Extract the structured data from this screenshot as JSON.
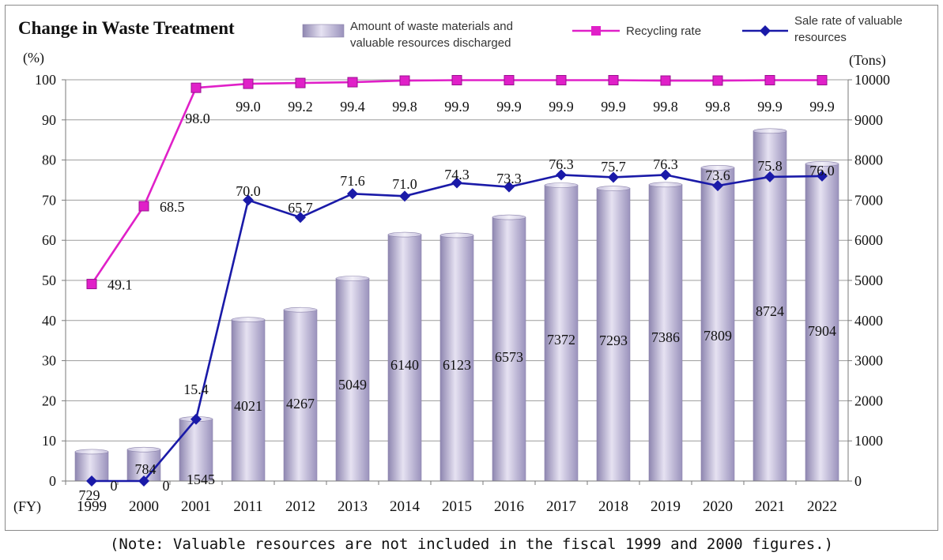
{
  "note": "(Note: Valuable resources are not included in the fiscal 1999 and 2000 figures.)",
  "chart_data": {
    "type": "bar",
    "title": "Change in Waste Treatment",
    "x_axis_unit": "(FY)",
    "left_axis_unit": "(%)",
    "right_axis_unit": "(Tons)",
    "left_ylim": [
      0,
      100
    ],
    "left_ticks": [
      "0",
      "10",
      "20",
      "30",
      "40",
      "50",
      "60",
      "70",
      "80",
      "90",
      "100"
    ],
    "right_ylim": [
      0,
      10000
    ],
    "right_ticks": [
      "0",
      "1000",
      "2000",
      "3000",
      "4000",
      "5000",
      "6000",
      "7000",
      "8000",
      "9000",
      "10000"
    ],
    "grid": true,
    "legend_position": "top",
    "categories": [
      "1999",
      "2000",
      "2001",
      "2011",
      "2012",
      "2013",
      "2014",
      "2015",
      "2016",
      "2017",
      "2018",
      "2019",
      "2020",
      "2021",
      "2022"
    ],
    "series": [
      {
        "name": "Amount of waste materials and valuable resources discharged",
        "legend_lines": [
          "Amount of waste materials and",
          "valuable resources discharged"
        ],
        "type": "bar",
        "axis": "right",
        "color": "#b4acd0",
        "values": [
          729,
          784,
          1545,
          4021,
          4267,
          5049,
          6140,
          6123,
          6573,
          7372,
          7293,
          7386,
          7809,
          8724,
          7904
        ],
        "labels": [
          "729",
          "784",
          "1545",
          "4021",
          "4267",
          "5049",
          "6140",
          "6123",
          "6573",
          "7372",
          "7293",
          "7386",
          "7809",
          "8724",
          "7904"
        ]
      },
      {
        "name": "Recycling rate",
        "legend_lines": [
          "Recycling rate"
        ],
        "type": "line",
        "axis": "left",
        "color": "#e020c8",
        "marker": "square",
        "values": [
          49.1,
          68.5,
          98.0,
          99.0,
          99.2,
          99.4,
          99.8,
          99.9,
          99.9,
          99.9,
          99.9,
          99.8,
          99.8,
          99.9,
          99.9
        ],
        "labels": [
          "49.1",
          "68.5",
          "98.0",
          "99.0",
          "99.2",
          "99.4",
          "99.8",
          "99.9",
          "99.9",
          "99.9",
          "99.9",
          "99.8",
          "99.8",
          "99.9",
          "99.9"
        ]
      },
      {
        "name": "Sale rate of valuable resources",
        "legend_lines": [
          "Sale rate of valuable",
          "resources"
        ],
        "type": "line",
        "axis": "left",
        "color": "#1a1aa8",
        "marker": "diamond",
        "values": [
          0,
          0,
          15.4,
          70.0,
          65.7,
          71.6,
          71.0,
          74.3,
          73.3,
          76.3,
          75.7,
          76.3,
          73.6,
          75.8,
          76.0
        ],
        "labels": [
          "0",
          "0",
          "15.4",
          "70.0",
          "65.7",
          "71.6",
          "71.0",
          "74.3",
          "73.3",
          "76.3",
          "75.7",
          "76.3",
          "73.6",
          "75.8",
          "76.0"
        ]
      }
    ]
  }
}
